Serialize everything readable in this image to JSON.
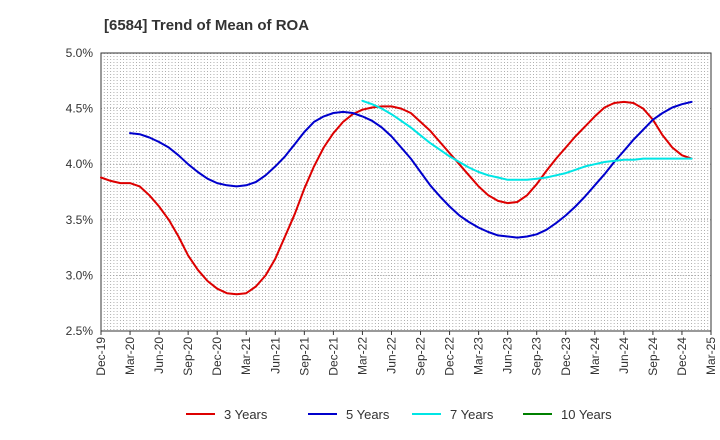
{
  "chart_data": {
    "type": "line",
    "title": "[6584]  Trend of Mean of ROA",
    "xlabel": "",
    "ylabel": "",
    "ylim": [
      2.5,
      5.0
    ],
    "y_ticks": [
      "2.5%",
      "3.0%",
      "3.5%",
      "4.0%",
      "4.5%",
      "5.0%"
    ],
    "y_tick_values": [
      2.5,
      3.0,
      3.5,
      4.0,
      4.5,
      5.0
    ],
    "x_ticks": [
      "Dec-19",
      "Mar-20",
      "Jun-20",
      "Sep-20",
      "Dec-20",
      "Mar-21",
      "Jun-21",
      "Sep-21",
      "Dec-21",
      "Mar-22",
      "Jun-22",
      "Sep-22",
      "Dec-22",
      "Mar-23",
      "Jun-23",
      "Sep-23",
      "Dec-23",
      "Mar-24",
      "Jun-24",
      "Sep-24",
      "Dec-24",
      "Mar-25"
    ],
    "x_range": [
      0,
      63
    ],
    "grid": true,
    "legend_position": "bottom",
    "series": [
      {
        "name": "3 Years",
        "color": "#dd0000",
        "points": [
          [
            0,
            3.88
          ],
          [
            1,
            3.85
          ],
          [
            2,
            3.83
          ],
          [
            3,
            3.83
          ],
          [
            4,
            3.8
          ],
          [
            5,
            3.72
          ],
          [
            6,
            3.62
          ],
          [
            7,
            3.5
          ],
          [
            8,
            3.35
          ],
          [
            9,
            3.18
          ],
          [
            10,
            3.05
          ],
          [
            11,
            2.95
          ],
          [
            12,
            2.88
          ],
          [
            13,
            2.84
          ],
          [
            14,
            2.83
          ],
          [
            15,
            2.84
          ],
          [
            16,
            2.9
          ],
          [
            17,
            3.0
          ],
          [
            18,
            3.15
          ],
          [
            19,
            3.35
          ],
          [
            20,
            3.55
          ],
          [
            21,
            3.78
          ],
          [
            22,
            3.98
          ],
          [
            23,
            4.15
          ],
          [
            24,
            4.28
          ],
          [
            25,
            4.38
          ],
          [
            26,
            4.45
          ],
          [
            27,
            4.49
          ],
          [
            28,
            4.51
          ],
          [
            29,
            4.52
          ],
          [
            30,
            4.52
          ],
          [
            31,
            4.5
          ],
          [
            32,
            4.46
          ],
          [
            33,
            4.38
          ],
          [
            34,
            4.3
          ],
          [
            35,
            4.2
          ],
          [
            36,
            4.1
          ],
          [
            37,
            4.0
          ],
          [
            38,
            3.9
          ],
          [
            39,
            3.8
          ],
          [
            40,
            3.72
          ],
          [
            41,
            3.67
          ],
          [
            42,
            3.65
          ],
          [
            43,
            3.66
          ],
          [
            44,
            3.72
          ],
          [
            45,
            3.82
          ],
          [
            46,
            3.94
          ],
          [
            47,
            4.05
          ],
          [
            48,
            4.15
          ],
          [
            49,
            4.25
          ],
          [
            50,
            4.34
          ],
          [
            51,
            4.43
          ],
          [
            52,
            4.51
          ],
          [
            53,
            4.55
          ],
          [
            54,
            4.56
          ],
          [
            55,
            4.55
          ],
          [
            56,
            4.5
          ],
          [
            57,
            4.4
          ],
          [
            58,
            4.26
          ],
          [
            59,
            4.15
          ],
          [
            60,
            4.08
          ],
          [
            61,
            4.05
          ]
        ]
      },
      {
        "name": "5 Years",
        "color": "#0000cc",
        "points": [
          [
            3,
            4.28
          ],
          [
            4,
            4.27
          ],
          [
            5,
            4.24
          ],
          [
            6,
            4.2
          ],
          [
            7,
            4.15
          ],
          [
            8,
            4.08
          ],
          [
            9,
            4.0
          ],
          [
            10,
            3.93
          ],
          [
            11,
            3.87
          ],
          [
            12,
            3.83
          ],
          [
            13,
            3.81
          ],
          [
            14,
            3.8
          ],
          [
            15,
            3.81
          ],
          [
            16,
            3.84
          ],
          [
            17,
            3.9
          ],
          [
            18,
            3.98
          ],
          [
            19,
            4.07
          ],
          [
            20,
            4.18
          ],
          [
            21,
            4.29
          ],
          [
            22,
            4.38
          ],
          [
            23,
            4.43
          ],
          [
            24,
            4.46
          ],
          [
            25,
            4.47
          ],
          [
            26,
            4.46
          ],
          [
            27,
            4.43
          ],
          [
            28,
            4.39
          ],
          [
            29,
            4.33
          ],
          [
            30,
            4.25
          ],
          [
            31,
            4.15
          ],
          [
            32,
            4.05
          ],
          [
            33,
            3.93
          ],
          [
            34,
            3.81
          ],
          [
            35,
            3.71
          ],
          [
            36,
            3.62
          ],
          [
            37,
            3.54
          ],
          [
            38,
            3.48
          ],
          [
            39,
            3.43
          ],
          [
            40,
            3.39
          ],
          [
            41,
            3.36
          ],
          [
            42,
            3.35
          ],
          [
            43,
            3.34
          ],
          [
            44,
            3.35
          ],
          [
            45,
            3.37
          ],
          [
            46,
            3.41
          ],
          [
            47,
            3.47
          ],
          [
            48,
            3.54
          ],
          [
            49,
            3.62
          ],
          [
            50,
            3.71
          ],
          [
            51,
            3.81
          ],
          [
            52,
            3.91
          ],
          [
            53,
            4.02
          ],
          [
            54,
            4.12
          ],
          [
            55,
            4.22
          ],
          [
            56,
            4.31
          ],
          [
            57,
            4.4
          ],
          [
            58,
            4.46
          ],
          [
            59,
            4.51
          ],
          [
            60,
            4.54
          ],
          [
            61,
            4.56
          ]
        ]
      },
      {
        "name": "7 Years",
        "color": "#00e5e5",
        "points": [
          [
            27,
            4.57
          ],
          [
            28,
            4.54
          ],
          [
            29,
            4.5
          ],
          [
            30,
            4.45
          ],
          [
            31,
            4.39
          ],
          [
            32,
            4.33
          ],
          [
            33,
            4.26
          ],
          [
            34,
            4.19
          ],
          [
            35,
            4.13
          ],
          [
            36,
            4.07
          ],
          [
            37,
            4.02
          ],
          [
            38,
            3.97
          ],
          [
            39,
            3.93
          ],
          [
            40,
            3.9
          ],
          [
            41,
            3.88
          ],
          [
            42,
            3.86
          ],
          [
            43,
            3.86
          ],
          [
            44,
            3.86
          ],
          [
            45,
            3.87
          ],
          [
            46,
            3.88
          ],
          [
            47,
            3.9
          ],
          [
            48,
            3.92
          ],
          [
            49,
            3.95
          ],
          [
            50,
            3.98
          ],
          [
            51,
            4.0
          ],
          [
            52,
            4.02
          ],
          [
            53,
            4.03
          ],
          [
            54,
            4.04
          ],
          [
            55,
            4.04
          ],
          [
            56,
            4.05
          ],
          [
            57,
            4.05
          ],
          [
            58,
            4.05
          ],
          [
            59,
            4.05
          ],
          [
            60,
            4.05
          ],
          [
            61,
            4.05
          ]
        ]
      },
      {
        "name": "10 Years",
        "color": "#008000",
        "points": []
      }
    ]
  }
}
